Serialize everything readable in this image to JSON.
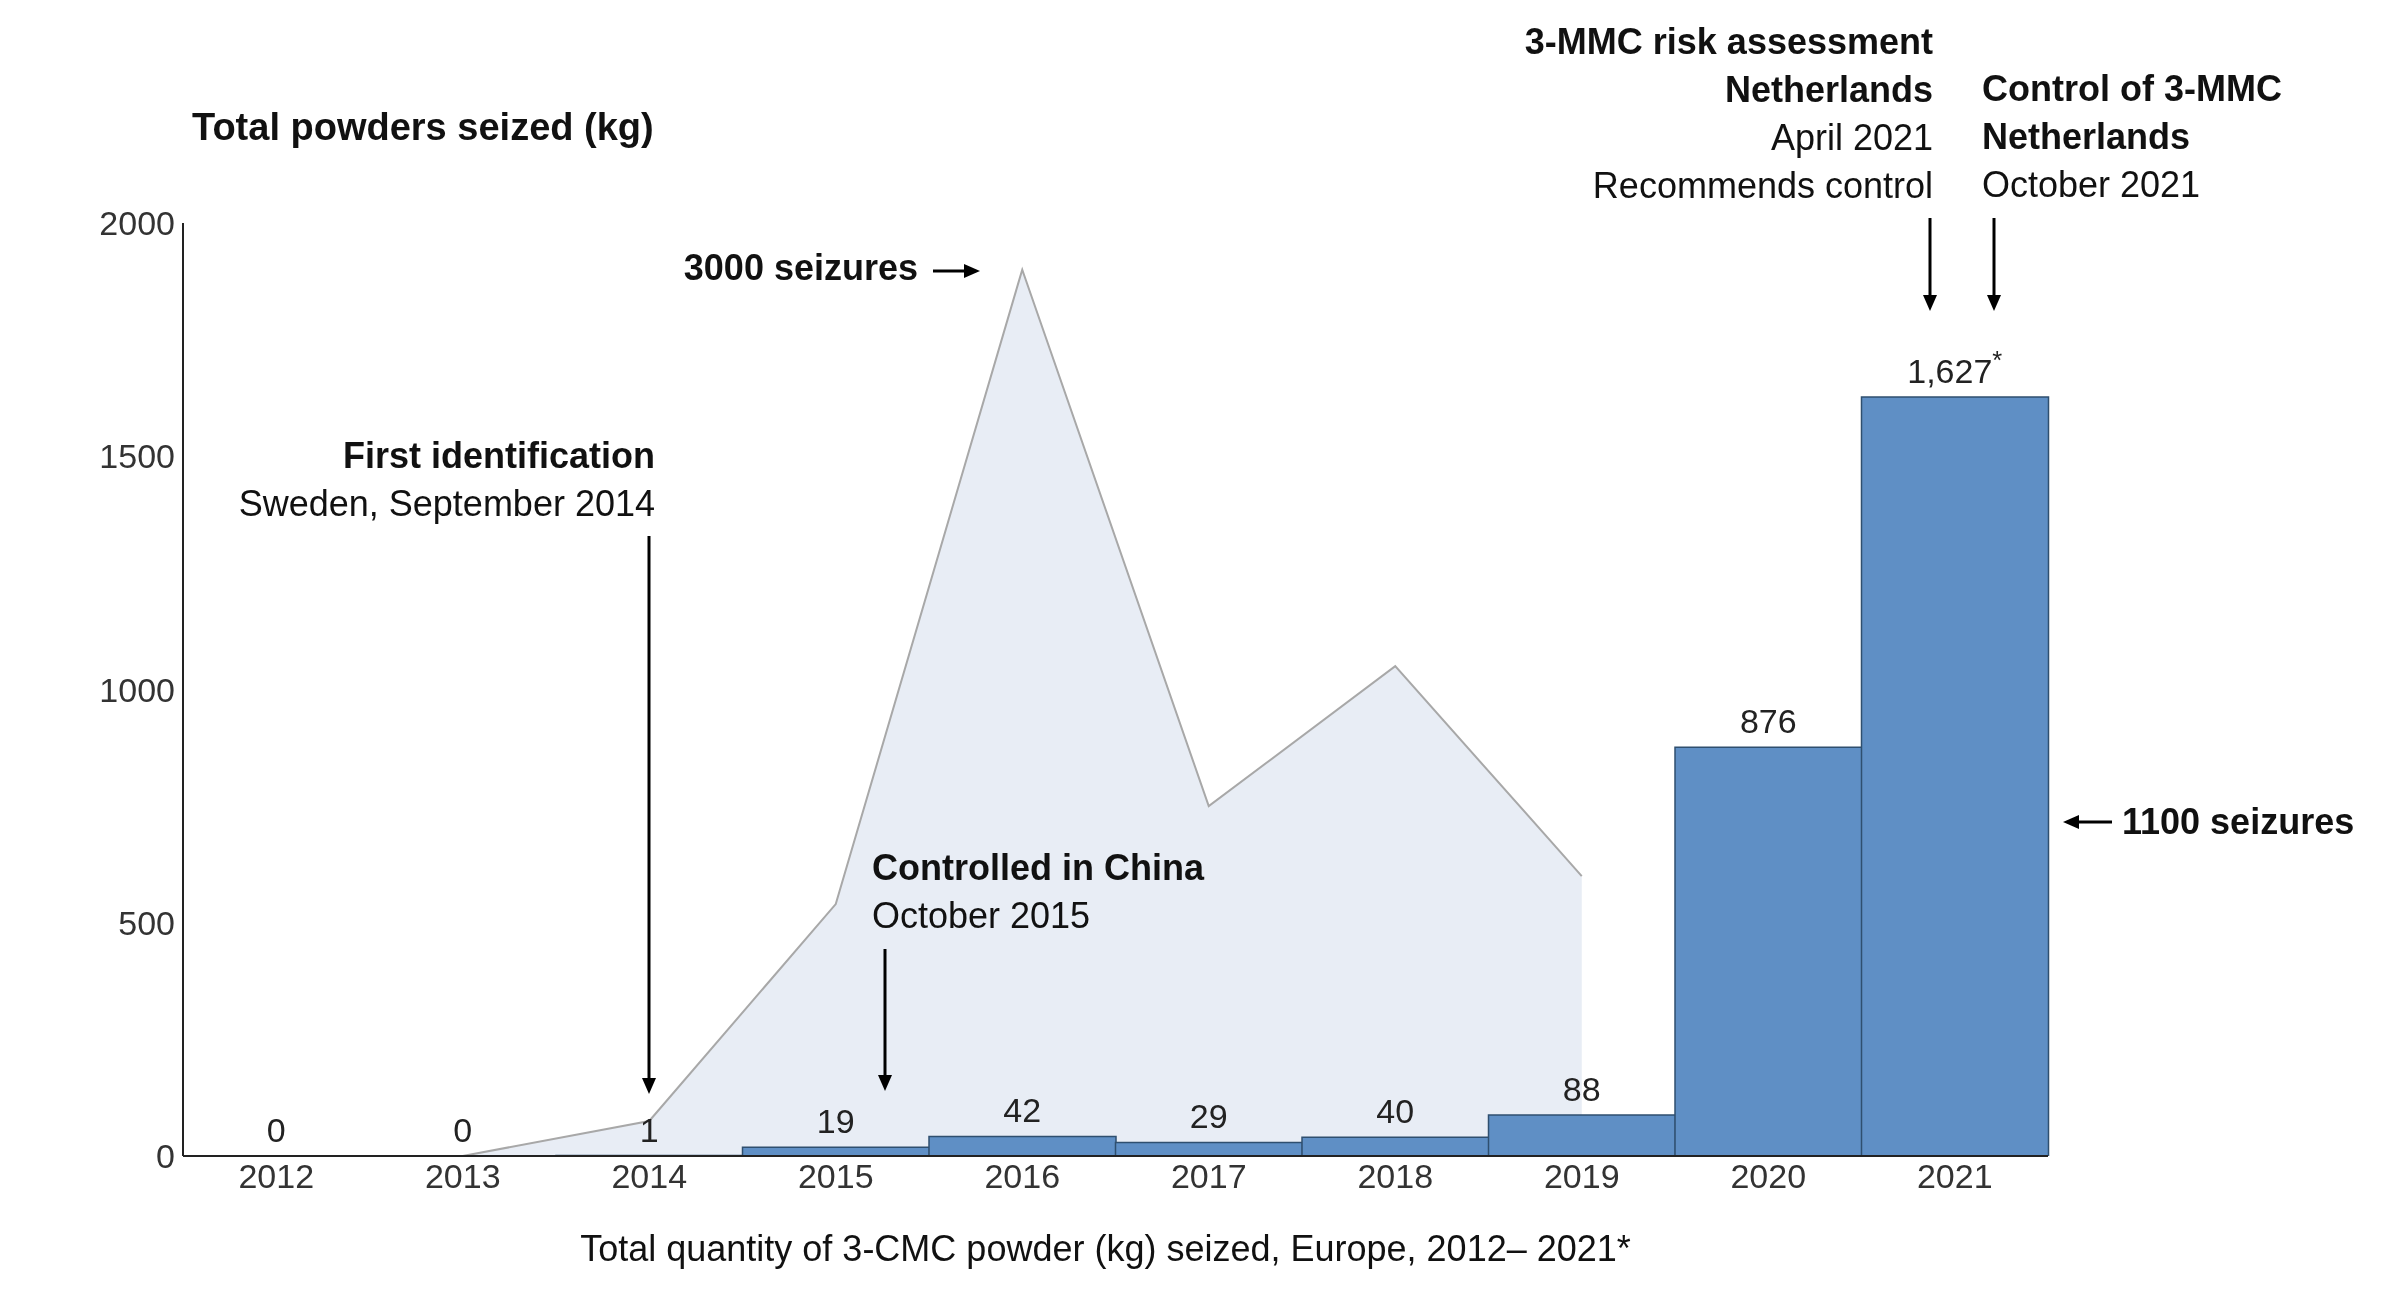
{
  "chart_data": {
    "type": "bar",
    "ylabel": "Total powders seized (kg)",
    "xlabel": "Total quantity of 3-CMC powder (kg) seized, Europe, 2012– 2021*",
    "categories": [
      "2012",
      "2013",
      "2014",
      "2015",
      "2016",
      "2017",
      "2018",
      "2019",
      "2020",
      "2021"
    ],
    "series": [
      {
        "type": "area",
        "color": "#e8edf5",
        "values": [
          null,
          0,
          75,
          540,
          1900,
          750,
          1050,
          600,
          null,
          null
        ]
      },
      {
        "color": "#5f8fc5",
        "values": [
          0,
          0,
          1,
          19,
          42,
          29,
          40,
          88,
          876,
          1627
        ],
        "value_labels": [
          "0",
          "0",
          "1",
          "19",
          "42",
          "29",
          "40",
          "88",
          "876",
          "1,627$^{*}$"
        ]
      }
    ],
    "ylim": [
      0,
      2000
    ],
    "yticks": [
      0,
      500,
      1000,
      1500,
      2000
    ],
    "grid": false,
    "legend": false,
    "annotations": [
      "3000 seizures",
      "First identification\nSweden, September 2014",
      "Controlled in China\nOctober 2015",
      "3-MMC risk assessment\nNetherlands\nApril 2021\nRecommends control",
      "Control of 3-MMC\nNetherlands\nOctober 2021",
      "1100 seizures"
    ]
  }
}
